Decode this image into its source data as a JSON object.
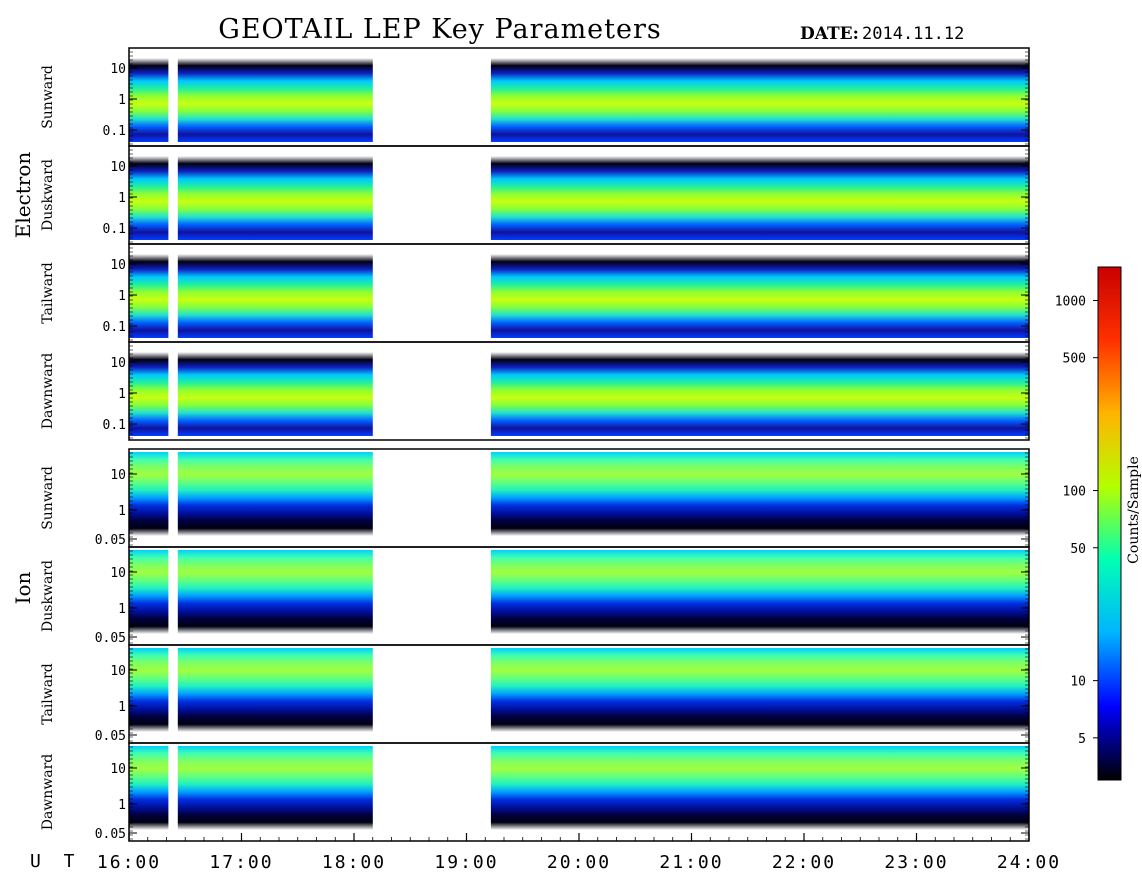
{
  "title": "GEOTAIL LEP Key Parameters",
  "date_label": "DATE:",
  "date_value": "2014.11.12",
  "groups": [
    {
      "label": "Electron",
      "panels": [
        "Sunward",
        "Duskward",
        "Tailward",
        "Dawnward"
      ]
    },
    {
      "label": "Ion",
      "panels": [
        "Sunward",
        "Duskward",
        "Tailward",
        "Dawnward"
      ]
    }
  ],
  "time_axis": {
    "prefix": "U T",
    "ticks": [
      "16:00",
      "17:00",
      "18:00",
      "19:00",
      "20:00",
      "21:00",
      "22:00",
      "23:00",
      "24:00"
    ]
  },
  "colorbar": {
    "label": "Counts/Sample",
    "ticks": [
      "5",
      "10",
      "50",
      "100",
      "500",
      "1000"
    ],
    "colors": [
      "#000000",
      "#0000ff",
      "#00b4ff",
      "#00ffb4",
      "#b4ff00",
      "#ffb400",
      "#ff3000",
      "#c80000"
    ]
  },
  "chart_data": {
    "type": "heatmap",
    "title": "GEOTAIL LEP Key Parameters",
    "date": "2014.11.12",
    "x_range": [
      "16:00",
      "24:00"
    ],
    "data_gaps": [
      [
        "16:21",
        "16:26"
      ],
      [
        "18:10",
        "19:13"
      ]
    ],
    "colorbar": {
      "label": "Counts/Sample",
      "scale": "log",
      "range": [
        3,
        1500
      ]
    },
    "panels": [
      {
        "group": "Electron",
        "direction": "Sunward",
        "y_ticks": [
          "0.1",
          "1",
          "10"
        ],
        "y_scale": "log"
      },
      {
        "group": "Electron",
        "direction": "Duskward",
        "y_ticks": [
          "0.1",
          "1",
          "10"
        ],
        "y_scale": "log"
      },
      {
        "group": "Electron",
        "direction": "Tailward",
        "y_ticks": [
          "0.1",
          "1",
          "10"
        ],
        "y_scale": "log"
      },
      {
        "group": "Electron",
        "direction": "Dawnward",
        "y_ticks": [
          "0.1",
          "1",
          "10"
        ],
        "y_scale": "log"
      },
      {
        "group": "Ion",
        "direction": "Sunward",
        "y_ticks": [
          "0.05",
          "1",
          "10"
        ],
        "y_scale": "log"
      },
      {
        "group": "Ion",
        "direction": "Duskward",
        "y_ticks": [
          "0.05",
          "1",
          "10"
        ],
        "y_scale": "log"
      },
      {
        "group": "Ion",
        "direction": "Tailward",
        "y_ticks": [
          "0.05",
          "1",
          "10"
        ],
        "y_scale": "log"
      },
      {
        "group": "Ion",
        "direction": "Dawnward",
        "y_ticks": [
          "0.05",
          "1",
          "10"
        ],
        "y_scale": "log"
      }
    ]
  }
}
